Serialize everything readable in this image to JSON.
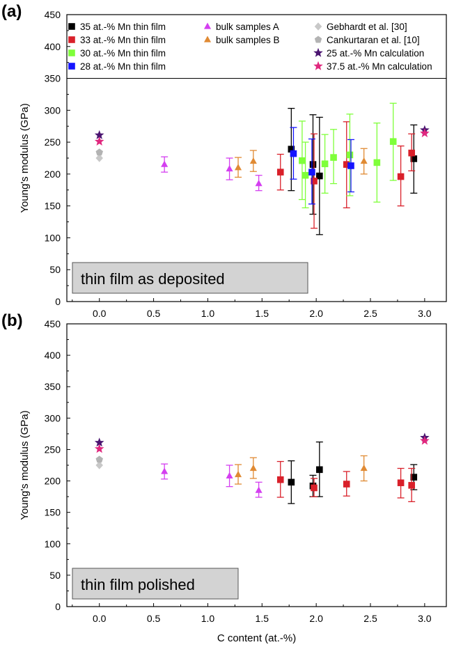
{
  "colors": {
    "mn35": "#000000",
    "mn33": "#d9202a",
    "mn30": "#7fff3a",
    "mn28": "#1414ff",
    "bulkA": "#d43ff0",
    "bulkB": "#e08a33",
    "gebhardt": "#c8c8c8",
    "cankurtaran": "#b3b3b3",
    "calc25": "#4a1470",
    "calc375": "#e0287e",
    "annotation_fill": "#d3d3d3"
  },
  "chart_data": [
    {
      "type": "scatter",
      "panel_label": "(a)",
      "annotation": "thin film as deposited",
      "xlabel": "",
      "ylabel": "Young's modulus (GPa)",
      "xlim": [
        -0.3,
        3.2
      ],
      "ylim": [
        0,
        450
      ],
      "x_ticks": [
        "0.0",
        "0.5",
        "1.0",
        "1.5",
        "2.0",
        "2.5",
        "3.0"
      ],
      "y_ticks": [
        "0",
        "50",
        "100",
        "150",
        "200",
        "250",
        "300",
        "350",
        "400",
        "450"
      ],
      "legend_position": "top",
      "legend_separator_y": 350,
      "series": [
        {
          "name": "35 at.-% Mn thin film",
          "marker": "square",
          "color_key": "mn35",
          "points": [
            {
              "x": 1.77,
              "y": 239,
              "lo": 174,
              "hi": 303
            },
            {
              "x": 1.97,
              "y": 215,
              "lo": 137,
              "hi": 293
            },
            {
              "x": 2.03,
              "y": 197,
              "lo": 105,
              "hi": 289
            },
            {
              "x": 2.9,
              "y": 224,
              "lo": 170,
              "hi": 277
            }
          ]
        },
        {
          "name": "33 at.-% Mn thin film",
          "marker": "square",
          "color_key": "mn33",
          "points": [
            {
              "x": 1.67,
              "y": 203,
              "lo": 175,
              "hi": 231
            },
            {
              "x": 1.98,
              "y": 189,
              "lo": 115,
              "hi": 263
            },
            {
              "x": 2.28,
              "y": 215,
              "lo": 147,
              "hi": 282
            },
            {
              "x": 2.78,
              "y": 196,
              "lo": 150,
              "hi": 244
            },
            {
              "x": 2.88,
              "y": 233,
              "lo": 205,
              "hi": 263
            }
          ]
        },
        {
          "name": "30 at.-% Mn thin film",
          "marker": "square",
          "color_key": "mn30",
          "points": [
            {
              "x": 1.87,
              "y": 221,
              "lo": 160,
              "hi": 283
            },
            {
              "x": 1.9,
              "y": 198,
              "lo": 147,
              "hi": 250
            },
            {
              "x": 2.08,
              "y": 216,
              "lo": 170,
              "hi": 262
            },
            {
              "x": 2.16,
              "y": 226,
              "lo": 185,
              "hi": 270
            },
            {
              "x": 2.31,
              "y": 230,
              "lo": 166,
              "hi": 294
            },
            {
              "x": 2.56,
              "y": 218,
              "lo": 156,
              "hi": 280
            },
            {
              "x": 2.71,
              "y": 251,
              "lo": 190,
              "hi": 311
            }
          ]
        },
        {
          "name": "28 at.-% Mn thin film",
          "marker": "square",
          "color_key": "mn28",
          "points": [
            {
              "x": 1.79,
              "y": 232,
              "lo": 192,
              "hi": 273
            },
            {
              "x": 1.96,
              "y": 203,
              "lo": 153,
              "hi": 255
            },
            {
              "x": 2.32,
              "y": 213,
              "lo": 172,
              "hi": 254
            }
          ]
        },
        {
          "name": "bulk samples A",
          "marker": "triangle",
          "color_key": "bulkA",
          "points": [
            {
              "x": 0.6,
              "y": 215,
              "lo": 203,
              "hi": 227
            },
            {
              "x": 1.2,
              "y": 208,
              "lo": 191,
              "hi": 225
            },
            {
              "x": 1.47,
              "y": 185,
              "lo": 174,
              "hi": 198
            }
          ]
        },
        {
          "name": "bulk samples B",
          "marker": "triangle",
          "color_key": "bulkB",
          "points": [
            {
              "x": 1.28,
              "y": 210,
              "lo": 195,
              "hi": 226
            },
            {
              "x": 1.42,
              "y": 220,
              "lo": 204,
              "hi": 237
            },
            {
              "x": 2.44,
              "y": 220,
              "lo": 200,
              "hi": 240
            }
          ]
        },
        {
          "name": "Gebhardt et al. [30]",
          "marker": "diamond",
          "color_key": "gebhardt",
          "points": [
            {
              "x": 0.0,
              "y": 225
            }
          ]
        },
        {
          "name": "Cankurtaran et al. [10]",
          "marker": "pentagon",
          "color_key": "cankurtaran",
          "points": [
            {
              "x": 0.0,
              "y": 234
            }
          ]
        },
        {
          "name": "25 at.-% Mn calculation",
          "marker": "star",
          "color_key": "calc25",
          "points": [
            {
              "x": 0.0,
              "y": 261
            },
            {
              "x": 3.0,
              "y": 269
            }
          ]
        },
        {
          "name": "37.5 at.-% Mn calculation",
          "marker": "star",
          "color_key": "calc375",
          "points": [
            {
              "x": 0.0,
              "y": 251
            },
            {
              "x": 3.0,
              "y": 264
            }
          ]
        }
      ]
    },
    {
      "type": "scatter",
      "panel_label": "(b)",
      "annotation": "thin film polished",
      "xlabel": "C content (at.-%)",
      "ylabel": "Young's modulus (GPa)",
      "xlim": [
        -0.3,
        3.2
      ],
      "ylim": [
        0,
        450
      ],
      "x_ticks": [
        "0.0",
        "0.5",
        "1.0",
        "1.5",
        "2.0",
        "2.5",
        "3.0"
      ],
      "y_ticks": [
        "0",
        "50",
        "100",
        "150",
        "200",
        "250",
        "300",
        "350",
        "400",
        "450"
      ],
      "series": [
        {
          "name": "35 at.-% Mn thin film",
          "marker": "square",
          "color_key": "mn35",
          "points": [
            {
              "x": 1.77,
              "y": 198,
              "lo": 164,
              "hi": 232
            },
            {
              "x": 1.97,
              "y": 192,
              "lo": 175,
              "hi": 209
            },
            {
              "x": 2.03,
              "y": 218,
              "lo": 175,
              "hi": 262
            },
            {
              "x": 2.9,
              "y": 206,
              "lo": 186,
              "hi": 226
            }
          ]
        },
        {
          "name": "33 at.-% Mn thin film",
          "marker": "square",
          "color_key": "mn33",
          "points": [
            {
              "x": 1.67,
              "y": 202,
              "lo": 174,
              "hi": 231
            },
            {
              "x": 1.98,
              "y": 189,
              "lo": 175,
              "hi": 204
            },
            {
              "x": 2.28,
              "y": 195,
              "lo": 176,
              "hi": 215
            },
            {
              "x": 2.78,
              "y": 197,
              "lo": 173,
              "hi": 220
            },
            {
              "x": 2.88,
              "y": 193,
              "lo": 167,
              "hi": 220
            }
          ]
        },
        {
          "name": "bulk samples A",
          "marker": "triangle",
          "color_key": "bulkA",
          "points": [
            {
              "x": 0.6,
              "y": 215,
              "lo": 203,
              "hi": 227
            },
            {
              "x": 1.2,
              "y": 208,
              "lo": 191,
              "hi": 225
            },
            {
              "x": 1.47,
              "y": 185,
              "lo": 174,
              "hi": 198
            }
          ]
        },
        {
          "name": "bulk samples B",
          "marker": "triangle",
          "color_key": "bulkB",
          "points": [
            {
              "x": 1.28,
              "y": 210,
              "lo": 195,
              "hi": 226
            },
            {
              "x": 1.42,
              "y": 220,
              "lo": 204,
              "hi": 237
            },
            {
              "x": 2.44,
              "y": 220,
              "lo": 200,
              "hi": 240
            }
          ]
        },
        {
          "name": "Gebhardt et al. [30]",
          "marker": "diamond",
          "color_key": "gebhardt",
          "points": [
            {
              "x": 0.0,
              "y": 225
            }
          ]
        },
        {
          "name": "Cankurtaran et al. [10]",
          "marker": "pentagon",
          "color_key": "cankurtaran",
          "points": [
            {
              "x": 0.0,
              "y": 234
            }
          ]
        },
        {
          "name": "25 at.-% Mn calculation",
          "marker": "star",
          "color_key": "calc25",
          "points": [
            {
              "x": 0.0,
              "y": 261
            },
            {
              "x": 3.0,
              "y": 269
            }
          ]
        },
        {
          "name": "37.5 at.-% Mn calculation",
          "marker": "star",
          "color_key": "calc375",
          "points": [
            {
              "x": 0.0,
              "y": 251
            },
            {
              "x": 3.0,
              "y": 264
            }
          ]
        }
      ]
    }
  ]
}
